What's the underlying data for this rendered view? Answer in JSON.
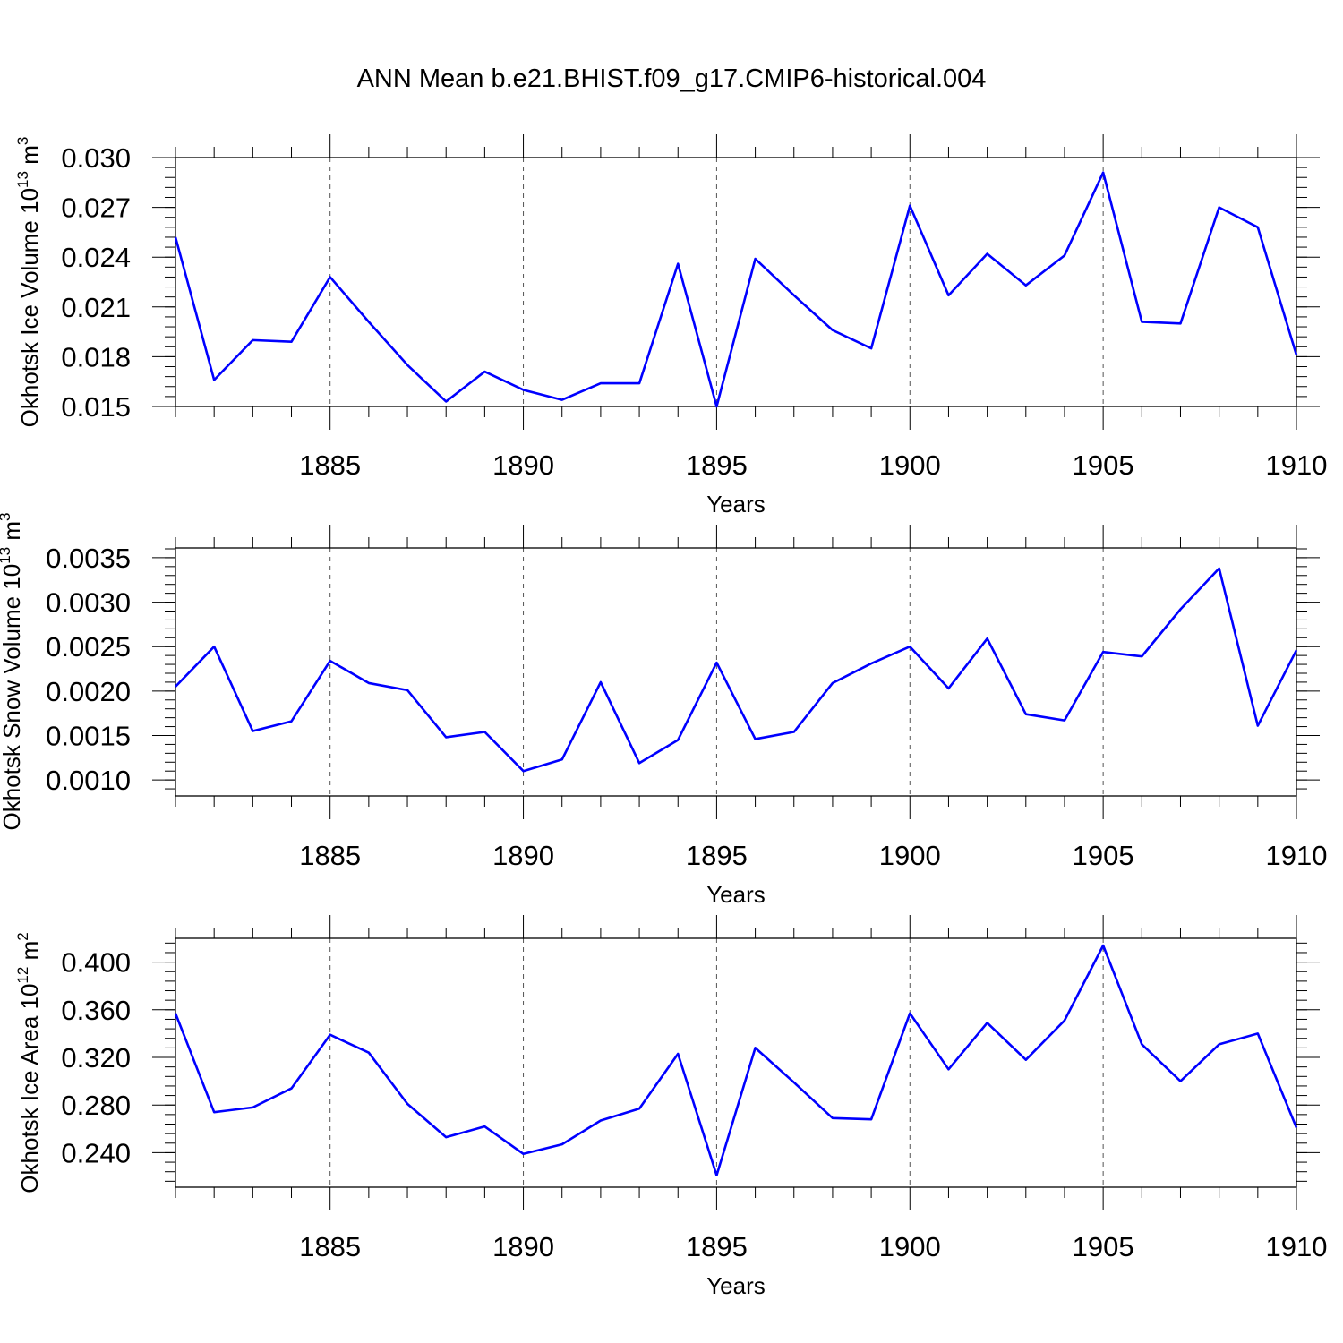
{
  "title": "ANN Mean b.e21.BHIST.f09_g17.CMIP6-historical.004",
  "chart_data": [
    {
      "type": "line",
      "name": "ice-volume",
      "ylabel": "Okhotsk Ice Volume",
      "ylabel_unit": "10",
      "ylabel_exp": "13",
      "ylabel_tail": " m",
      "ylabel_tail_exp": "3",
      "xlabel": "Years",
      "xlim": [
        1881,
        1910
      ],
      "ylim": [
        0.015,
        0.03
      ],
      "yticks": [
        0.015,
        0.018,
        0.021,
        0.024,
        0.027,
        0.03
      ],
      "ytick_labels": [
        "0.015",
        "0.018",
        "0.021",
        "0.024",
        "0.027",
        "0.030"
      ],
      "xticks": [
        1885,
        1890,
        1895,
        1900,
        1905,
        1910
      ],
      "xtick_labels": [
        "1885",
        "1890",
        "1895",
        "1900",
        "1905",
        "1910"
      ],
      "line_color": "#0000ff",
      "x": [
        1881,
        1882,
        1883,
        1884,
        1885,
        1886,
        1887,
        1888,
        1889,
        1890,
        1891,
        1892,
        1893,
        1894,
        1895,
        1896,
        1897,
        1898,
        1899,
        1900,
        1901,
        1902,
        1903,
        1904,
        1905,
        1906,
        1907,
        1908,
        1909,
        1910
      ],
      "values": [
        0.0252,
        0.0166,
        0.019,
        0.0189,
        0.0228,
        0.0201,
        0.0175,
        0.0153,
        0.0171,
        0.016,
        0.0154,
        0.0164,
        0.0164,
        0.0236,
        0.015,
        0.0239,
        0.0217,
        0.0196,
        0.0185,
        0.0271,
        0.0217,
        0.0242,
        0.0223,
        0.0241,
        0.0291,
        0.0201,
        0.02,
        0.027,
        0.0258,
        0.0181
      ]
    },
    {
      "type": "line",
      "name": "snow-volume",
      "ylabel": "Okhotsk Snow Volume",
      "ylabel_unit": "10",
      "ylabel_exp": "13",
      "ylabel_tail": " m",
      "ylabel_tail_exp": "3",
      "xlabel": "Years",
      "xlim": [
        1881,
        1910
      ],
      "ylim": [
        0.00082,
        0.00361
      ],
      "yticks": [
        0.001,
        0.0015,
        0.002,
        0.0025,
        0.003,
        0.0035
      ],
      "ytick_labels": [
        "0.0010",
        "0.0015",
        "0.0020",
        "0.0025",
        "0.0030",
        "0.0035"
      ],
      "xticks": [
        1885,
        1890,
        1895,
        1900,
        1905,
        1910
      ],
      "xtick_labels": [
        "1885",
        "1890",
        "1895",
        "1900",
        "1905",
        "1910"
      ],
      "line_color": "#0000ff",
      "x": [
        1881,
        1882,
        1883,
        1884,
        1885,
        1886,
        1887,
        1888,
        1889,
        1890,
        1891,
        1892,
        1893,
        1894,
        1895,
        1896,
        1897,
        1898,
        1899,
        1900,
        1901,
        1902,
        1903,
        1904,
        1905,
        1906,
        1907,
        1908,
        1909,
        1910
      ],
      "values": [
        0.00205,
        0.0025,
        0.00155,
        0.00166,
        0.00234,
        0.00209,
        0.00201,
        0.00148,
        0.00154,
        0.0011,
        0.00123,
        0.0021,
        0.00119,
        0.00145,
        0.00232,
        0.00146,
        0.00154,
        0.00209,
        0.00231,
        0.0025,
        0.00203,
        0.00259,
        0.00174,
        0.00167,
        0.00244,
        0.00239,
        0.00292,
        0.00338,
        0.00161,
        0.00246
      ]
    },
    {
      "type": "line",
      "name": "ice-area",
      "ylabel": "Okhotsk Ice Area",
      "ylabel_unit": "10",
      "ylabel_exp": "12",
      "ylabel_tail": " m",
      "ylabel_tail_exp": "2",
      "xlabel": "Years",
      "xlim": [
        1881,
        1910
      ],
      "ylim": [
        0.211,
        0.42
      ],
      "yticks": [
        0.24,
        0.28,
        0.32,
        0.36,
        0.4
      ],
      "ytick_labels": [
        "0.240",
        "0.280",
        "0.320",
        "0.360",
        "0.400"
      ],
      "xticks": [
        1885,
        1890,
        1895,
        1900,
        1905,
        1910
      ],
      "xtick_labels": [
        "1885",
        "1890",
        "1895",
        "1900",
        "1905",
        "1910"
      ],
      "line_color": "#0000ff",
      "x": [
        1881,
        1882,
        1883,
        1884,
        1885,
        1886,
        1887,
        1888,
        1889,
        1890,
        1891,
        1892,
        1893,
        1894,
        1895,
        1896,
        1897,
        1898,
        1899,
        1900,
        1901,
        1902,
        1903,
        1904,
        1905,
        1906,
        1907,
        1908,
        1909,
        1910
      ],
      "values": [
        0.357,
        0.274,
        0.278,
        0.294,
        0.339,
        0.324,
        0.281,
        0.253,
        0.262,
        0.239,
        0.247,
        0.267,
        0.277,
        0.323,
        0.221,
        0.328,
        0.299,
        0.269,
        0.268,
        0.357,
        0.31,
        0.349,
        0.318,
        0.351,
        0.414,
        0.331,
        0.3,
        0.331,
        0.34,
        0.261
      ]
    }
  ]
}
